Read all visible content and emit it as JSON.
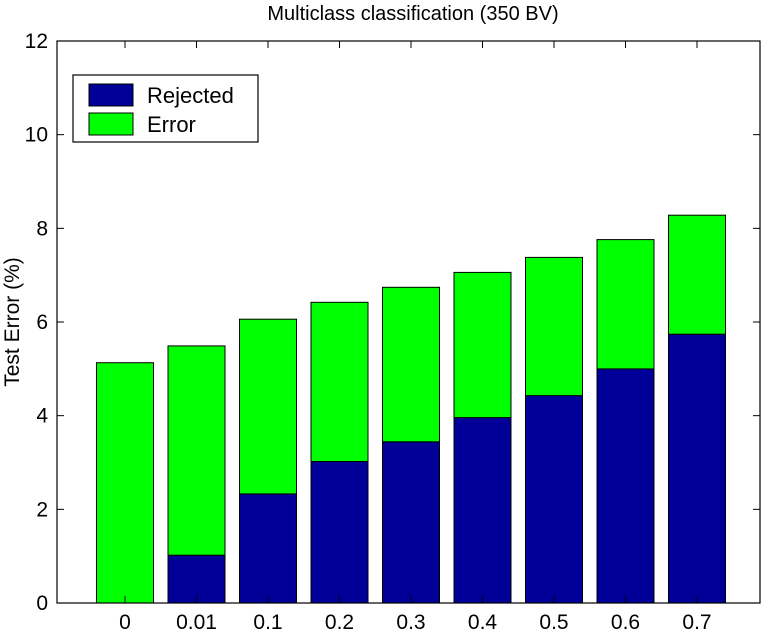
{
  "chart_data": {
    "type": "bar",
    "stacked": true,
    "title": "Multiclass classification (350 BV)",
    "xlabel": "",
    "ylabel": "Test Error (%)",
    "ylim": [
      0,
      12
    ],
    "yticks": [
      0,
      2,
      4,
      6,
      8,
      10,
      12
    ],
    "categories": [
      "0",
      "0.01",
      "0.1",
      "0.2",
      "0.3",
      "0.4",
      "0.5",
      "0.6",
      "0.7"
    ],
    "series": [
      {
        "name": "Rejected",
        "color": "#000099",
        "values": [
          0.0,
          1.02,
          2.33,
          3.02,
          3.44,
          3.96,
          4.43,
          5.0,
          5.74
        ]
      },
      {
        "name": "Error",
        "color": "#00ff00",
        "values": [
          5.13,
          4.47,
          3.73,
          3.4,
          3.3,
          3.1,
          2.95,
          2.76,
          2.54
        ]
      }
    ],
    "legend_position": "top-left",
    "grid": false
  }
}
